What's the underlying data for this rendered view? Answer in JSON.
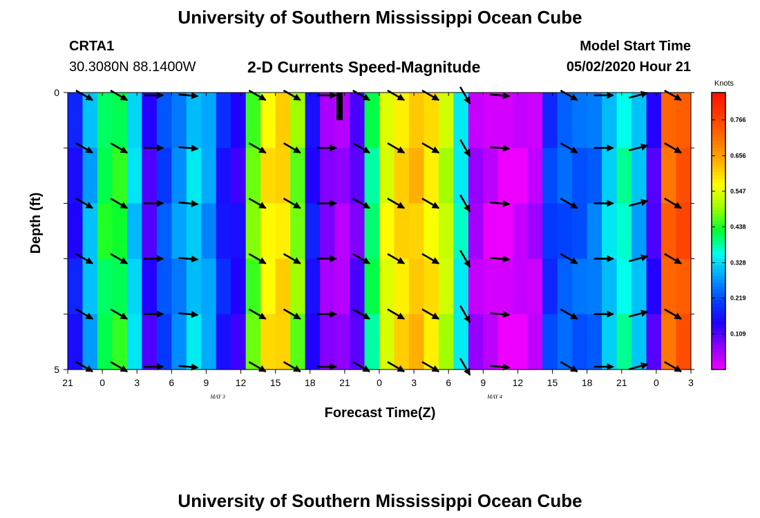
{
  "page": {
    "top_title": "University of Southern Mississippi Ocean Cube",
    "bottom_title": "University of Southern Mississippi Ocean Cube",
    "station_id": "CRTA1",
    "location": "30.3080N 88.1400W",
    "model_start_label": "Model Start Time",
    "model_start_value": "05/02/2020 Hour 21"
  },
  "chart_data": {
    "type": "heatmap",
    "title": "2-D Currents Speed-Magnitude",
    "xlabel": "Forecast Time(Z)",
    "ylabel": "Depth (ft)",
    "x_tick_labels": [
      "21",
      "0",
      "3",
      "6",
      "9",
      "12",
      "15",
      "18",
      "21",
      "0",
      "3",
      "6",
      "9",
      "12",
      "15",
      "18",
      "21",
      "0",
      "3"
    ],
    "date_labels": [
      {
        "text": "MAY 3",
        "at_hour": 15
      },
      {
        "text": "MAY 4",
        "at_hour": 39
      }
    ],
    "x_range_hours": [
      0,
      54
    ],
    "y_tick_labels": [
      "0",
      "5"
    ],
    "ylim": [
      0,
      5
    ],
    "colorbar": {
      "label": "Knots",
      "min": 0,
      "max": 0.85,
      "ticks": [
        0.109,
        0.219,
        0.328,
        0.438,
        0.547,
        0.656,
        0.766
      ],
      "tick_labels": [
        "0.109",
        "0.219",
        "0.328",
        "0.438",
        "0.547",
        "0.656",
        "0.766"
      ],
      "colors": [
        "#ee00ff",
        "#8f00ff",
        "#2000ff",
        "#0044ff",
        "#00a0ff",
        "#00ffee",
        "#00ff30",
        "#9cff00",
        "#ffff00",
        "#ffb000",
        "#ff7000",
        "#ff3a00",
        "#ff1000"
      ]
    },
    "depth_bins": [
      0,
      1,
      2,
      3,
      4,
      5
    ],
    "speed_columns": [
      0.16,
      0.3,
      0.42,
      0.43,
      0.32,
      0.12,
      0.22,
      0.27,
      0.32,
      0.28,
      0.17,
      0.14,
      0.47,
      0.58,
      0.6,
      0.48,
      0.16,
      0.07,
      0.05,
      0.1,
      0.4,
      0.55,
      0.6,
      0.62,
      0.58,
      0.52,
      0.35,
      0.05,
      0.02,
      0.0,
      0.02,
      0.04,
      0.2,
      0.23,
      0.23,
      0.25,
      0.32,
      0.37,
      0.3,
      0.12,
      0.72,
      0.75
    ],
    "vectors": {
      "depths": [
        0,
        1,
        2,
        3,
        4,
        5
      ],
      "times_hours": [
        0,
        3,
        6,
        9,
        15,
        18,
        21,
        24,
        27,
        30,
        33,
        36,
        42,
        45,
        48,
        51
      ],
      "directions_deg": [
        120,
        120,
        90,
        95,
        120,
        120,
        90,
        120,
        120,
        120,
        150,
        95,
        120,
        90,
        75,
        120
      ]
    }
  }
}
